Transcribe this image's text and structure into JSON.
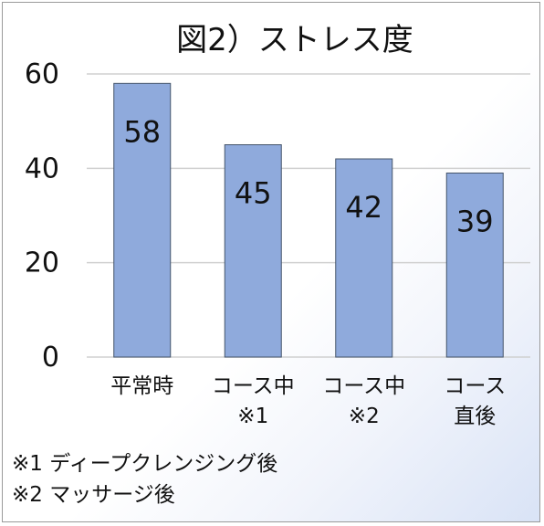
{
  "chart_data": {
    "type": "bar",
    "title": "図2）ストレス度",
    "categories": [
      [
        "平常時"
      ],
      [
        "コース中",
        "※1"
      ],
      [
        "コース中",
        "※2"
      ],
      [
        "コース",
        "直後"
      ]
    ],
    "values": [
      58,
      45,
      42,
      39
    ],
    "data_labels": [
      "58",
      "45",
      "42",
      "39"
    ],
    "ylim": [
      0,
      60
    ],
    "yticks": [
      0,
      20,
      40,
      60
    ],
    "grid": true,
    "bar_color": "#8faadc",
    "bar_edge_color": "#44546a",
    "footnotes": [
      "※1 ディープクレンジング後",
      "※2 マッサージ後"
    ]
  }
}
